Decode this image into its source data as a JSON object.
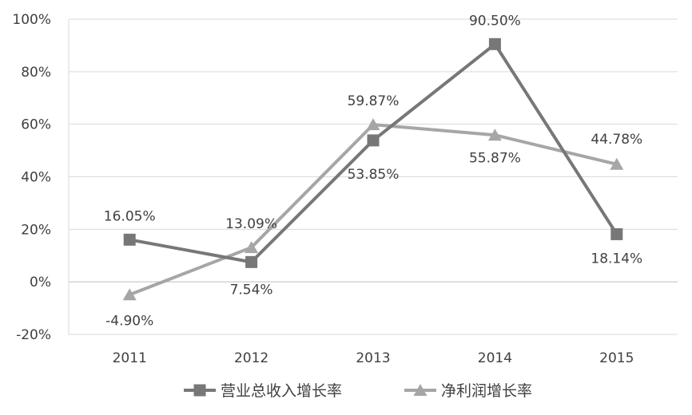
{
  "chart_data": {
    "type": "line",
    "categories": [
      "2011",
      "2012",
      "2013",
      "2014",
      "2015"
    ],
    "ylim": [
      -20,
      100
    ],
    "yticks": [
      -20,
      0,
      20,
      40,
      60,
      80,
      100
    ],
    "ytick_labels": [
      "-20%",
      "0%",
      "20%",
      "40%",
      "60%",
      "80%",
      "100%"
    ],
    "grid": true,
    "legend_position": "bottom",
    "series": [
      {
        "name": "营业总收入增长率",
        "marker": "square",
        "color": "#777777",
        "values": [
          16.05,
          7.54,
          53.85,
          90.5,
          18.14
        ],
        "labels": [
          "16.05%",
          "7.54%",
          "53.85%",
          "90.50%",
          "18.14%"
        ]
      },
      {
        "name": "净利润增长率",
        "marker": "triangle",
        "color": "#a6a6a6",
        "values": [
          -4.9,
          13.09,
          59.87,
          55.87,
          44.78
        ],
        "labels": [
          "-4.90%",
          "13.09%",
          "59.87%",
          "55.87%",
          "44.78%"
        ]
      }
    ]
  }
}
